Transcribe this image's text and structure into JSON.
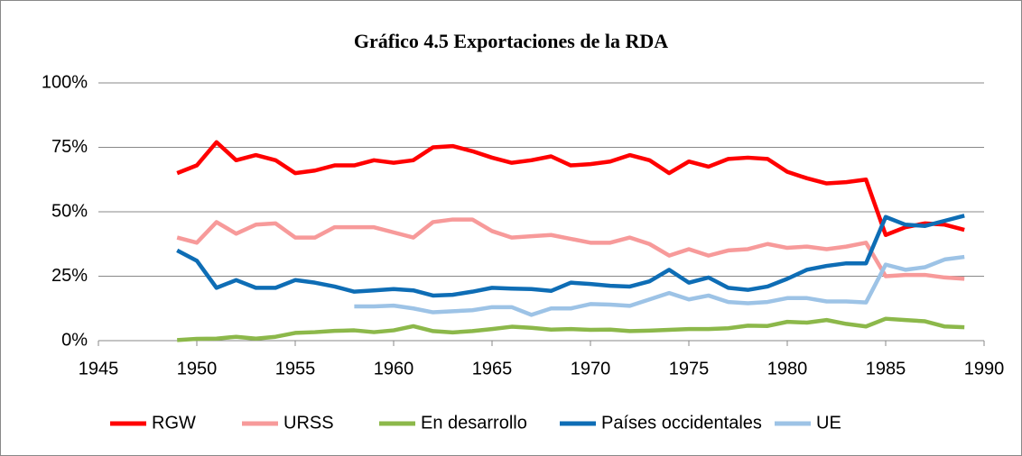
{
  "chart_data": {
    "type": "line",
    "title": "Gráfico 4.5 Exportaciones de la RDA",
    "x": [
      1949,
      1950,
      1951,
      1952,
      1953,
      1954,
      1955,
      1956,
      1957,
      1958,
      1959,
      1960,
      1961,
      1962,
      1963,
      1964,
      1965,
      1966,
      1967,
      1968,
      1969,
      1970,
      1971,
      1972,
      1973,
      1974,
      1975,
      1976,
      1977,
      1978,
      1979,
      1980,
      1981,
      1982,
      1983,
      1984,
      1985,
      1986,
      1987,
      1988,
      1989
    ],
    "series": [
      {
        "name": "RGW",
        "color": "#ff0000",
        "values": [
          65,
          68,
          77,
          70,
          72,
          70,
          65,
          66,
          68,
          68,
          70,
          69,
          70,
          75,
          75.5,
          73.5,
          71,
          69,
          70,
          71.5,
          68,
          68.5,
          69.5,
          72,
          70,
          65,
          69.5,
          67.5,
          70.5,
          71,
          70.5,
          65.5,
          63,
          61,
          61.5,
          62.5,
          41,
          44,
          45.5,
          45,
          43
        ]
      },
      {
        "name": "URSS",
        "color": "#f79a9a",
        "values": [
          40,
          38,
          46,
          41.5,
          45,
          45.5,
          40,
          40,
          44,
          44,
          44,
          42,
          40,
          46,
          47,
          47,
          42.5,
          40,
          40.5,
          41,
          39.5,
          38,
          38,
          40,
          37.5,
          33,
          35.5,
          33,
          35,
          35.5,
          37.5,
          36,
          36.5,
          35.5,
          36.5,
          38,
          25,
          25.5,
          25.5,
          24.5,
          24
        ]
      },
      {
        "name": "En desarrollo",
        "color": "#8cb84a",
        "values": [
          0.2,
          0.7,
          0.8,
          1.5,
          0.8,
          1.5,
          3,
          3.3,
          3.8,
          4,
          3.3,
          4,
          5.6,
          3.7,
          3.2,
          3.7,
          4.5,
          5.4,
          5,
          4.3,
          4.5,
          4.2,
          4.3,
          3.7,
          3.9,
          4.2,
          4.5,
          4.5,
          4.8,
          5.8,
          5.7,
          7.3,
          7,
          8,
          6.5,
          5.5,
          8.5,
          8,
          7.5,
          5.5,
          5.2
        ]
      },
      {
        "name": "Países occidentales",
        "color": "#0e6db5",
        "values": [
          35,
          31,
          20.5,
          23.5,
          20.5,
          20.5,
          23.5,
          22.5,
          21,
          19,
          19.5,
          20,
          19.5,
          17.5,
          17.8,
          19,
          20.5,
          20.2,
          20,
          19.3,
          22.5,
          22,
          21.3,
          21,
          23,
          27.5,
          22.5,
          24.5,
          20.5,
          19.7,
          21,
          24,
          27.5,
          29,
          30,
          30,
          48,
          45,
          44.5,
          46.5,
          48.5
        ]
      },
      {
        "name": "UE",
        "color": "#9dc3e6",
        "values": [
          null,
          null,
          null,
          null,
          null,
          null,
          null,
          null,
          null,
          13.3,
          13.3,
          13.6,
          12.5,
          11,
          11.4,
          11.8,
          13,
          13,
          10,
          12.5,
          12.5,
          14.2,
          14,
          13.5,
          16,
          18.5,
          16,
          17.5,
          15,
          14.5,
          15,
          16.5,
          16.5,
          15.2,
          15.2,
          14.8,
          29.5,
          27.5,
          28.5,
          31.5,
          32.5
        ]
      }
    ],
    "xlim": [
      1945,
      1990
    ],
    "xticks": [
      1945,
      1950,
      1955,
      1960,
      1965,
      1970,
      1975,
      1980,
      1985,
      1990
    ],
    "ylim": [
      0,
      100
    ],
    "yticks": [
      {
        "value": 0,
        "label": "0%"
      },
      {
        "value": 25,
        "label": "25%"
      },
      {
        "value": 50,
        "label": "50%"
      },
      {
        "value": 75,
        "label": "75%"
      },
      {
        "value": 100,
        "label": "100%"
      }
    ],
    "grid": true,
    "legend": "bottom"
  }
}
